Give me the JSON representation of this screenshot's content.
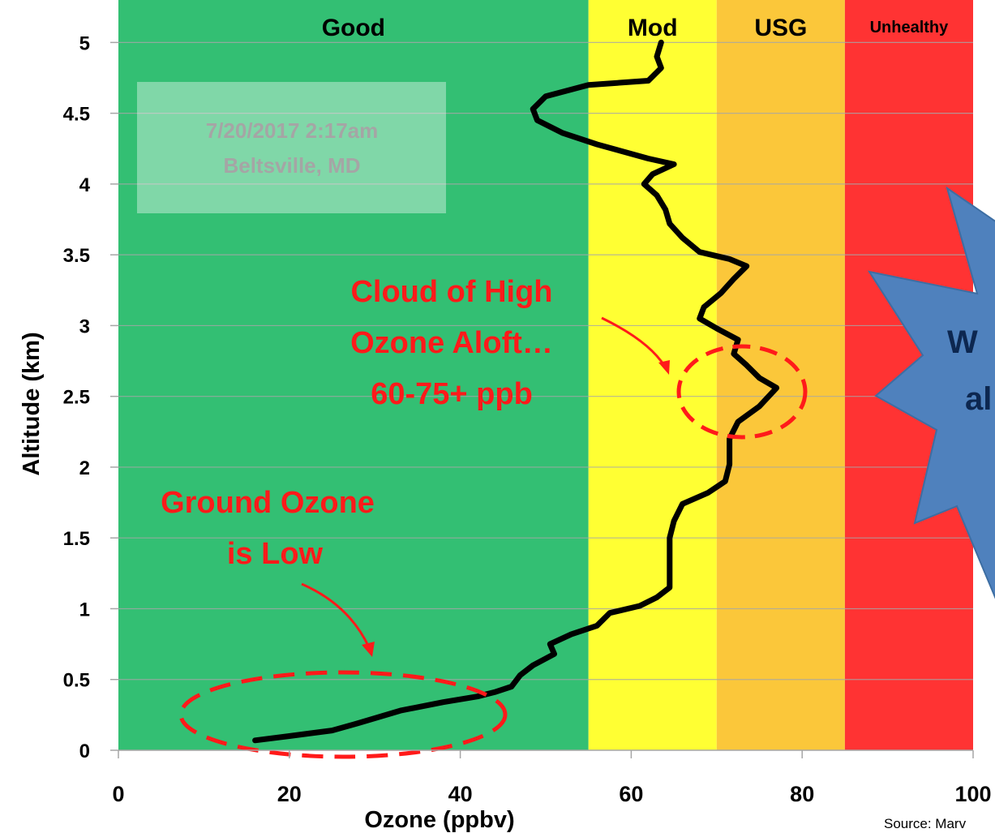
{
  "chart_data": {
    "type": "line",
    "xlabel": "Ozone (ppbv)",
    "ylabel": "Altitude (km)",
    "xlim": [
      0,
      100
    ],
    "ylim": [
      0,
      5.3
    ],
    "x_ticks": [
      0,
      20,
      40,
      60,
      80,
      100
    ],
    "x_tick_labels": [
      "0",
      "20",
      "40",
      "60",
      "80",
      "100"
    ],
    "y_ticks": [
      0,
      0.5,
      1,
      1.5,
      2,
      2.5,
      3,
      3.5,
      4,
      4.5,
      5
    ],
    "y_tick_labels": [
      "0",
      "0.5",
      "1",
      "1.5",
      "2",
      "2.5",
      "3",
      "3.5",
      "4",
      "4.5",
      "5"
    ],
    "grid": "horizontal",
    "bands": [
      {
        "label": "Good",
        "from": 0,
        "to": 55,
        "color": "#33bf73"
      },
      {
        "label": "Mod",
        "from": 55,
        "to": 70,
        "color": "#ffff33"
      },
      {
        "label": "USG",
        "from": 70,
        "to": 85,
        "color": "#fbc73a"
      },
      {
        "label": "Unhealthy",
        "from": 85,
        "to": 100,
        "color": "#ff3333"
      }
    ],
    "series": [
      {
        "color": "#000000",
        "points": [
          [
            16,
            0.07
          ],
          [
            20,
            0.1
          ],
          [
            25,
            0.14
          ],
          [
            28,
            0.19
          ],
          [
            33,
            0.28
          ],
          [
            38,
            0.34
          ],
          [
            42,
            0.38
          ],
          [
            44,
            0.41
          ],
          [
            46,
            0.45
          ],
          [
            47,
            0.53
          ],
          [
            48.5,
            0.6
          ],
          [
            51,
            0.68
          ],
          [
            50.5,
            0.75
          ],
          [
            53,
            0.82
          ],
          [
            56,
            0.88
          ],
          [
            57.5,
            0.97
          ],
          [
            61,
            1.02
          ],
          [
            63,
            1.08
          ],
          [
            64.5,
            1.15
          ],
          [
            64.5,
            1.35
          ],
          [
            64.5,
            1.5
          ],
          [
            65,
            1.62
          ],
          [
            66,
            1.74
          ],
          [
            69,
            1.82
          ],
          [
            71,
            1.9
          ],
          [
            71.5,
            2.02
          ],
          [
            71.5,
            2.2
          ],
          [
            72.5,
            2.32
          ],
          [
            75,
            2.43
          ],
          [
            77,
            2.56
          ],
          [
            75,
            2.63
          ],
          [
            73.5,
            2.72
          ],
          [
            72,
            2.8
          ],
          [
            72.5,
            2.9
          ],
          [
            70,
            2.98
          ],
          [
            68,
            3.05
          ],
          [
            68.5,
            3.13
          ],
          [
            70.5,
            3.23
          ],
          [
            72,
            3.33
          ],
          [
            73.5,
            3.42
          ],
          [
            71.5,
            3.47
          ],
          [
            68,
            3.52
          ],
          [
            66,
            3.62
          ],
          [
            64.5,
            3.72
          ],
          [
            64,
            3.82
          ],
          [
            63,
            3.92
          ],
          [
            61.5,
            4.0
          ],
          [
            62.5,
            4.07
          ],
          [
            65,
            4.14
          ],
          [
            62,
            4.18
          ],
          [
            56,
            4.28
          ],
          [
            52,
            4.36
          ],
          [
            49,
            4.45
          ],
          [
            48.5,
            4.53
          ],
          [
            50,
            4.62
          ],
          [
            55,
            4.7
          ],
          [
            62,
            4.73
          ],
          [
            63.5,
            4.82
          ],
          [
            63,
            4.9
          ],
          [
            63.5,
            5.0
          ]
        ]
      }
    ],
    "date_box": {
      "line1": "7/20/2017 2:17am",
      "line2": "Beltsville, MD"
    },
    "annotations": [
      {
        "id": "high-ozone",
        "lines": [
          "Cloud of High",
          "Ozone Aloft…",
          "60-75+ ppb"
        ],
        "color": "#ff1a1a"
      },
      {
        "id": "ground-ozone",
        "lines": [
          "Ground Ozone",
          "is Low"
        ],
        "color": "#ff1a1a"
      }
    ],
    "callout": {
      "lines": [
        "W",
        "al"
      ],
      "fill": "#4f81bd"
    },
    "source": "Source: Marv"
  }
}
